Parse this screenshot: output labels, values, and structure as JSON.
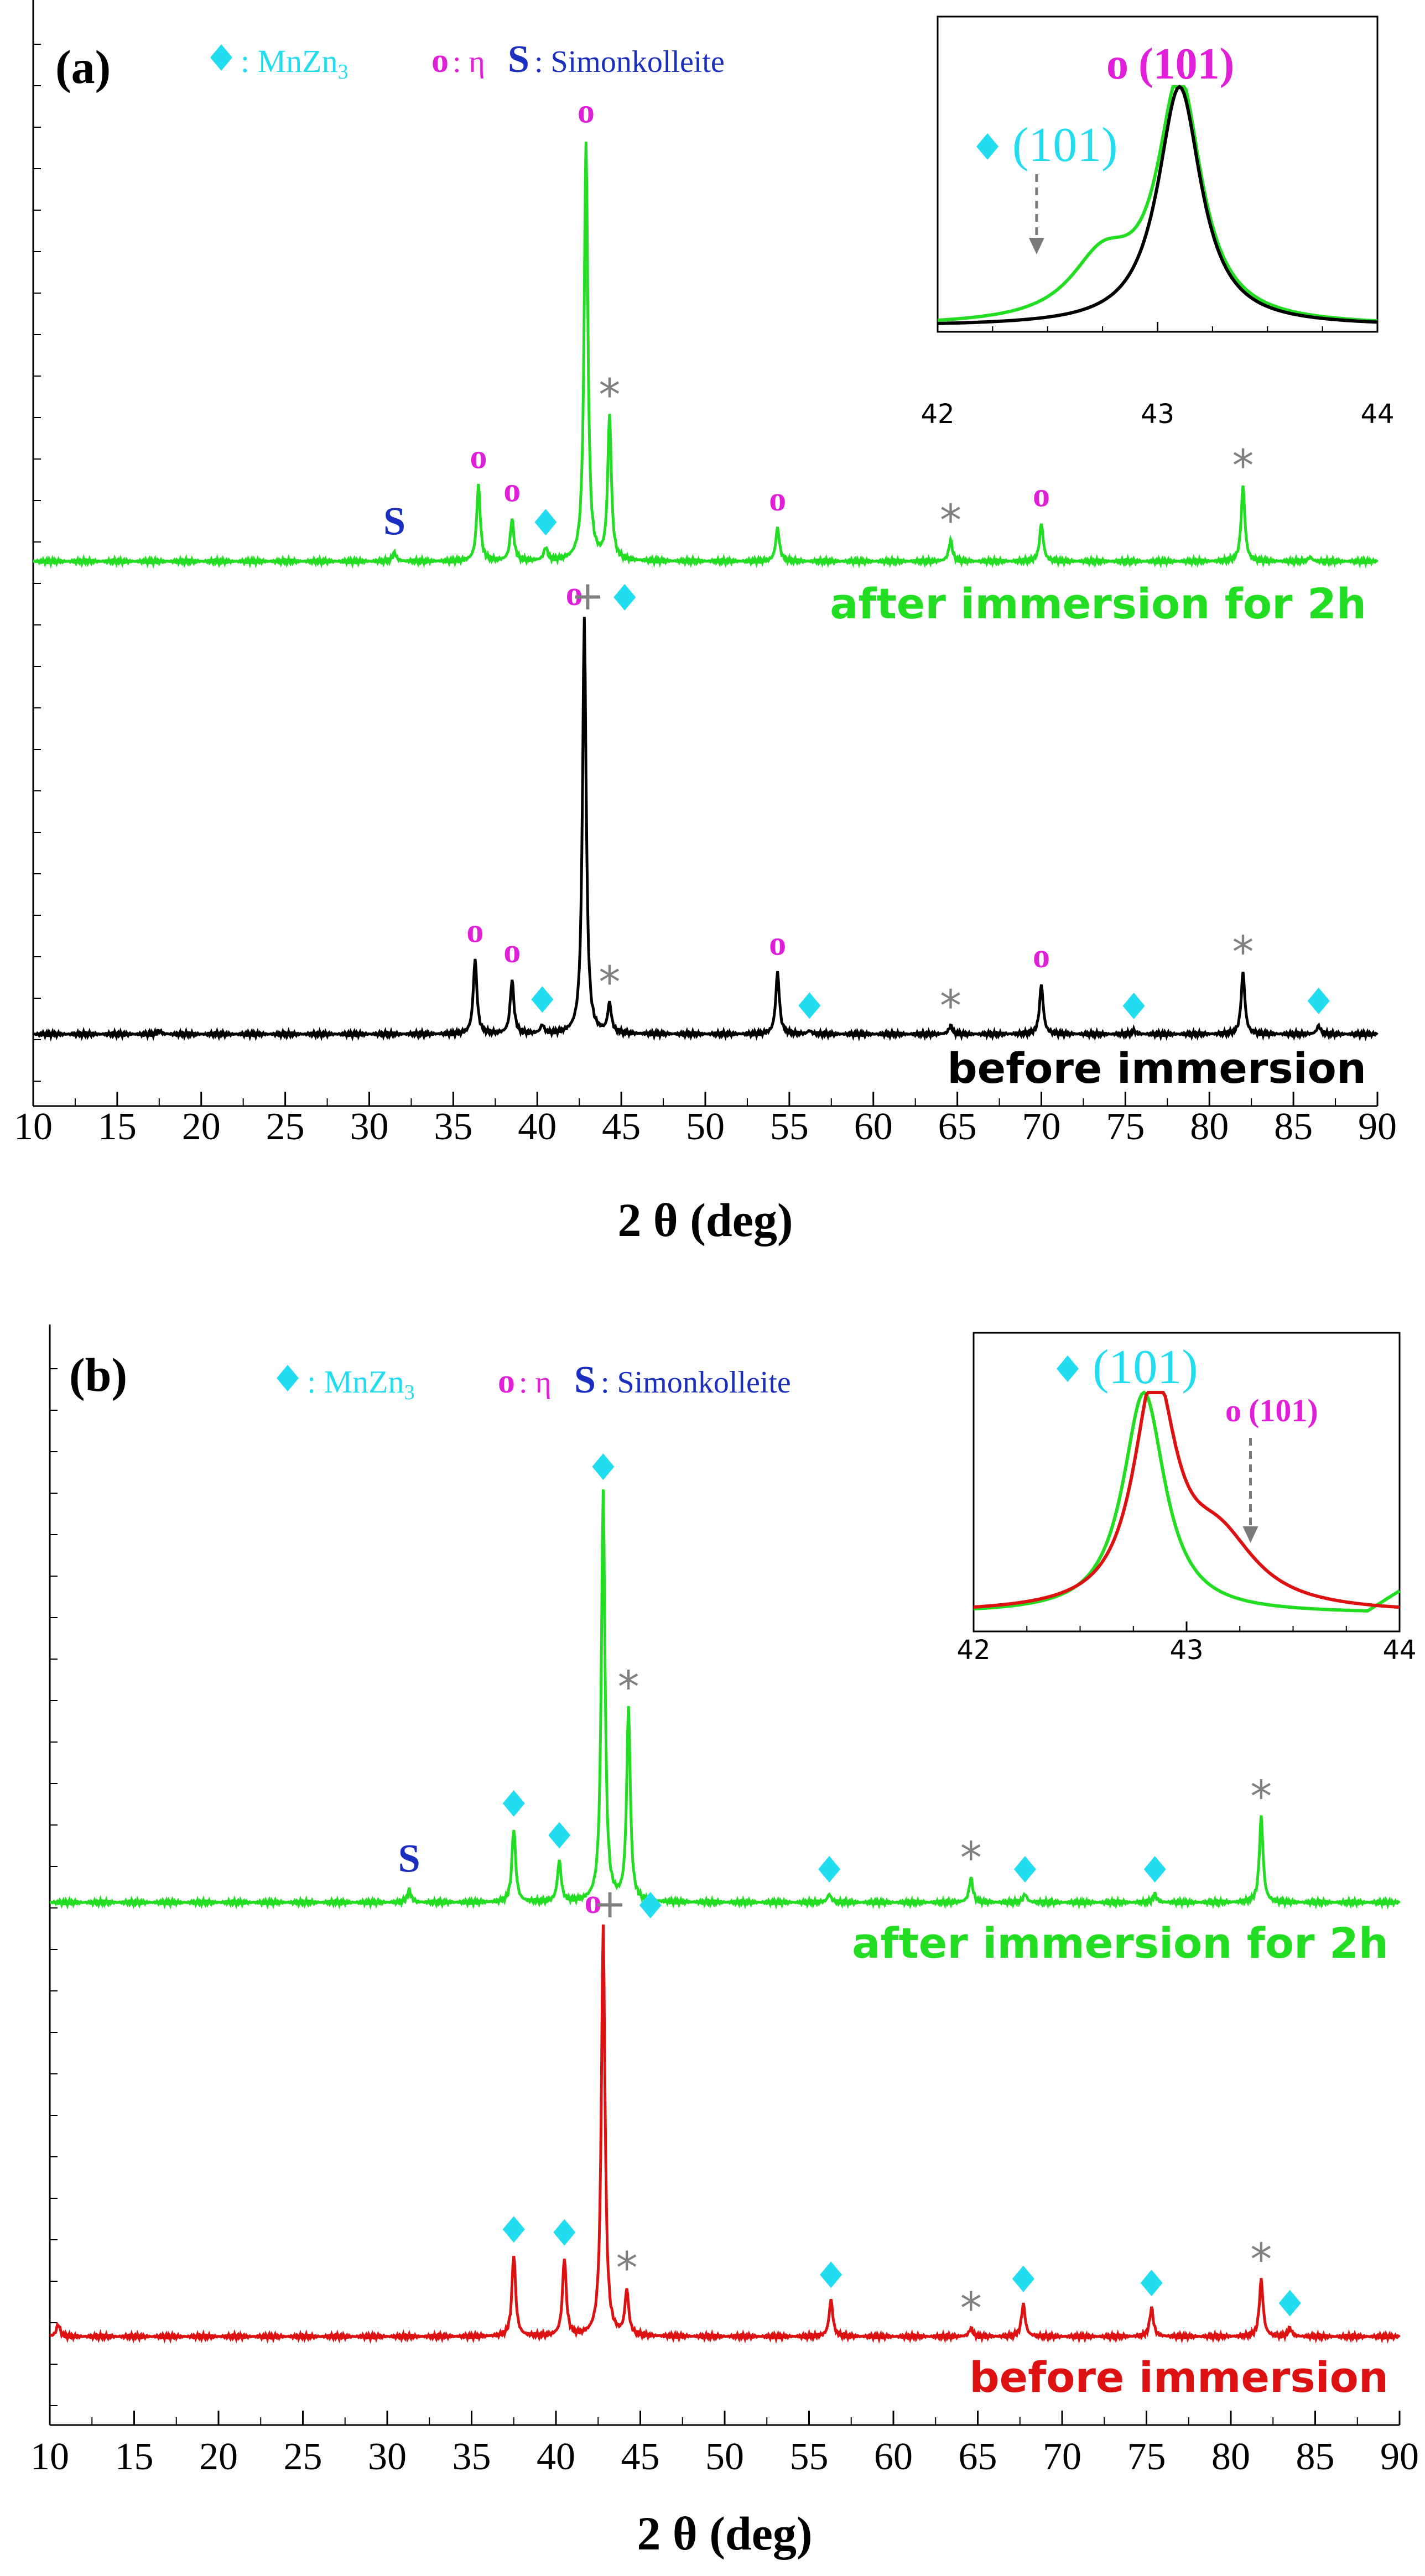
{
  "chart_data": [
    {
      "type": "line",
      "panel_label": "(a)",
      "xlabel": "2 θ (deg)",
      "ylabel": "",
      "xlim": [
        10,
        90
      ],
      "x_ticks": [
        10,
        15,
        20,
        25,
        30,
        35,
        40,
        45,
        50,
        55,
        60,
        65,
        70,
        75,
        80,
        85,
        90
      ],
      "legend": {
        "diamond": "◆",
        "diamond_label": ": MnZn",
        "diamond_sub": "3",
        "o_symbol": "o",
        "o_label": ": η",
        "s_symbol": "S",
        "s_label": ": Simonkolleite"
      },
      "series": [
        {
          "name": "after immersion for 2h",
          "color": "#22dd22",
          "peaks": [
            [
              31.5,
              0.02
            ],
            [
              36.5,
              0.18
            ],
            [
              38.5,
              0.1
            ],
            [
              40.5,
              0.03
            ],
            [
              42.9,
              1.0
            ],
            [
              44.3,
              0.34
            ],
            [
              54.3,
              0.08
            ],
            [
              64.6,
              0.05
            ],
            [
              70.0,
              0.09
            ],
            [
              82.0,
              0.18
            ],
            [
              86.0,
              0.01
            ]
          ]
        },
        {
          "name": "before immersion",
          "color": "#000000",
          "peaks": [
            [
              17.5,
              0.008
            ],
            [
              36.3,
              0.18
            ],
            [
              38.5,
              0.13
            ],
            [
              40.3,
              0.02
            ],
            [
              42.8,
              1.0
            ],
            [
              44.3,
              0.07
            ],
            [
              54.3,
              0.15
            ],
            [
              56.2,
              0.008
            ],
            [
              64.6,
              0.02
            ],
            [
              70.0,
              0.12
            ],
            [
              75.5,
              0.008
            ],
            [
              82.0,
              0.15
            ],
            [
              86.5,
              0.02
            ]
          ]
        }
      ],
      "annotations": [
        {
          "text": "o",
          "x": 36.5,
          "series": "after immersion for 2h"
        },
        {
          "text": "o",
          "x": 38.5,
          "series": "after immersion for 2h"
        },
        {
          "text": "◆",
          "x": 40.5,
          "series": "after immersion for 2h"
        },
        {
          "text": "o",
          "x": 42.9,
          "series": "after immersion for 2h"
        },
        {
          "text": "*",
          "x": 44.3,
          "series": "after immersion for 2h"
        },
        {
          "text": "o",
          "x": 54.3,
          "series": "after immersion for 2h"
        },
        {
          "text": "*",
          "x": 64.6,
          "series": "after immersion for 2h"
        },
        {
          "text": "o",
          "x": 70.0,
          "series": "after immersion for 2h"
        },
        {
          "text": "*",
          "x": 82.0,
          "series": "after immersion for 2h"
        },
        {
          "text": "S",
          "x": 31.5,
          "series": "after immersion for 2h"
        },
        {
          "text": "o",
          "x": 36.3,
          "series": "before immersion"
        },
        {
          "text": "o",
          "x": 38.5,
          "series": "before immersion"
        },
        {
          "text": "◆",
          "x": 40.3,
          "series": "before immersion"
        },
        {
          "text": "o",
          "x": 42.2,
          "series": "before immersion"
        },
        {
          "text": "+",
          "x": 43.0,
          "series": "before immersion"
        },
        {
          "text": "◆",
          "x": 45.2,
          "series": "before immersion"
        },
        {
          "text": "*",
          "x": 44.3,
          "series": "before immersion"
        },
        {
          "text": "o",
          "x": 54.3,
          "series": "before immersion"
        },
        {
          "text": "◆",
          "x": 56.2,
          "series": "before immersion"
        },
        {
          "text": "*",
          "x": 64.6,
          "series": "before immersion"
        },
        {
          "text": "o",
          "x": 70.0,
          "series": "before immersion"
        },
        {
          "text": "◆",
          "x": 75.5,
          "series": "before immersion"
        },
        {
          "text": "*",
          "x": 82.0,
          "series": "before immersion"
        },
        {
          "text": "◆",
          "x": 86.5,
          "series": "before immersion"
        }
      ],
      "inset": {
        "xlim": [
          42,
          44
        ],
        "x_ticks": [
          "42",
          "43",
          "44"
        ],
        "label_diamond": "◆",
        "label_diamond_text": "(101)",
        "label_o": "o",
        "label_o_text": "(101)",
        "series": [
          {
            "name": "after immersion for 2h",
            "color": "#22dd22",
            "peak_x": 43.1
          },
          {
            "name": "before immersion",
            "color": "#000000",
            "peak_x": 43.1
          }
        ]
      }
    },
    {
      "type": "line",
      "panel_label": "(b)",
      "xlabel": "2 θ (deg)",
      "ylabel": "",
      "xlim": [
        10,
        90
      ],
      "x_ticks": [
        10,
        15,
        20,
        25,
        30,
        35,
        40,
        45,
        50,
        55,
        60,
        65,
        70,
        75,
        80,
        85,
        90
      ],
      "legend": {
        "diamond": "◆",
        "diamond_label": ": MnZn",
        "diamond_sub": "3",
        "o_symbol": "o",
        "o_label": ": η",
        "s_symbol": "S",
        "s_label": ": Simonkolleite"
      },
      "series": [
        {
          "name": "after immersion for 2h",
          "color": "#22dd22",
          "peaks": [
            [
              31.3,
              0.03
            ],
            [
              37.5,
              0.18
            ],
            [
              40.2,
              0.1
            ],
            [
              42.8,
              1.0
            ],
            [
              44.3,
              0.47
            ],
            [
              56.2,
              0.02
            ],
            [
              64.6,
              0.06
            ],
            [
              67.8,
              0.02
            ],
            [
              75.5,
              0.02
            ],
            [
              81.8,
              0.21
            ]
          ]
        },
        {
          "name": "before immersion",
          "color": "#dd1111",
          "peaks": [
            [
              10.5,
              0.03
            ],
            [
              37.5,
              0.2
            ],
            [
              40.5,
              0.19
            ],
            [
              42.8,
              1.0
            ],
            [
              44.2,
              0.11
            ],
            [
              56.3,
              0.09
            ],
            [
              64.6,
              0.02
            ],
            [
              67.7,
              0.08
            ],
            [
              75.3,
              0.07
            ],
            [
              81.8,
              0.14
            ],
            [
              83.5,
              0.02
            ]
          ]
        }
      ],
      "annotations": [
        {
          "text": "S",
          "x": 31.3,
          "series": "after immersion for 2h"
        },
        {
          "text": "◆",
          "x": 37.5,
          "series": "after immersion for 2h"
        },
        {
          "text": "◆",
          "x": 40.2,
          "series": "after immersion for 2h"
        },
        {
          "text": "◆",
          "x": 42.8,
          "series": "after immersion for 2h"
        },
        {
          "text": "*",
          "x": 44.3,
          "series": "after immersion for 2h"
        },
        {
          "text": "◆",
          "x": 56.2,
          "series": "after immersion for 2h"
        },
        {
          "text": "*",
          "x": 64.6,
          "series": "after immersion for 2h"
        },
        {
          "text": "◆",
          "x": 67.8,
          "series": "after immersion for 2h"
        },
        {
          "text": "◆",
          "x": 75.5,
          "series": "after immersion for 2h"
        },
        {
          "text": "*",
          "x": 81.8,
          "series": "after immersion for 2h"
        },
        {
          "text": "o",
          "x": 42.2,
          "series": "before immersion"
        },
        {
          "text": "+",
          "x": 43.2,
          "series": "before immersion"
        },
        {
          "text": "◆",
          "x": 45.6,
          "series": "before immersion"
        },
        {
          "text": "◆",
          "x": 37.5,
          "series": "before immersion"
        },
        {
          "text": "◆",
          "x": 40.5,
          "series": "before immersion"
        },
        {
          "text": "*",
          "x": 44.2,
          "series": "before immersion"
        },
        {
          "text": "◆",
          "x": 56.3,
          "series": "before immersion"
        },
        {
          "text": "*",
          "x": 64.6,
          "series": "before immersion"
        },
        {
          "text": "◆",
          "x": 67.7,
          "series": "before immersion"
        },
        {
          "text": "◆",
          "x": 75.3,
          "series": "before immersion"
        },
        {
          "text": "*",
          "x": 81.8,
          "series": "before immersion"
        },
        {
          "text": "◆",
          "x": 83.5,
          "series": "before immersion"
        }
      ],
      "inset": {
        "xlim": [
          42,
          44
        ],
        "x_ticks": [
          "42",
          "43",
          "44"
        ],
        "label_diamond": "◆",
        "label_diamond_text": "(101)",
        "label_o": "o",
        "label_o_text": "(101)",
        "series": [
          {
            "name": "after immersion for 2h",
            "color": "#22dd22",
            "peak_x": 42.8
          },
          {
            "name": "before immersion",
            "color": "#dd1111",
            "peak_x": 42.85
          }
        ]
      }
    }
  ],
  "colors": {
    "diamond": "#22ddf0",
    "eta": "#e020d8",
    "simonkolleite": "#1a2fbf",
    "star": "#808080",
    "axis": "#000000"
  }
}
